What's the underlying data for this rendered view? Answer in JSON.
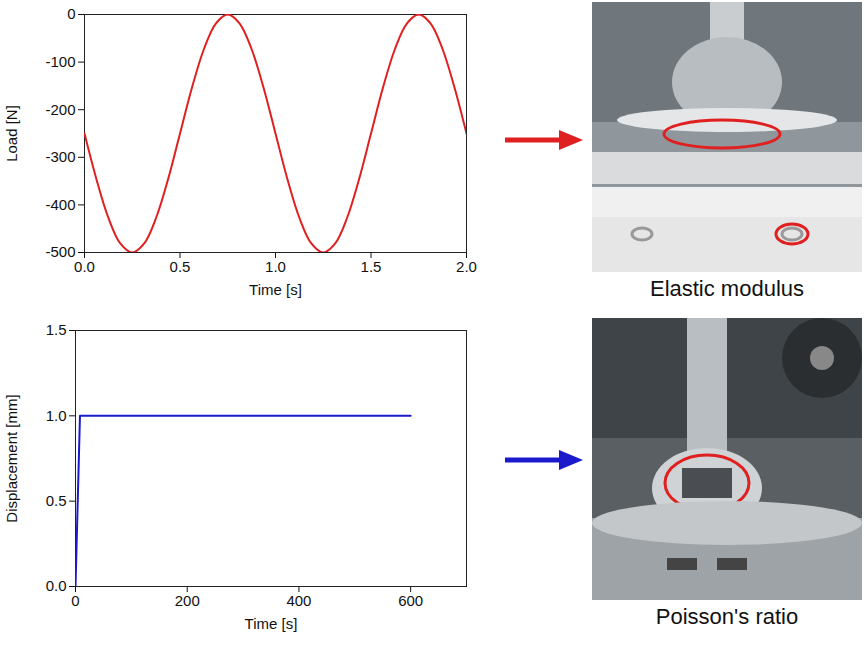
{
  "chart_data": [
    {
      "type": "line",
      "x_label": "Time [s]",
      "y_label": "Load [N]",
      "x": [
        0,
        0.0625,
        0.125,
        0.1875,
        0.25,
        0.3125,
        0.375,
        0.4375,
        0.5,
        0.5625,
        0.625,
        0.6875,
        0.75,
        0.8125,
        0.875,
        0.9375,
        1.0,
        1.0625,
        1.125,
        1.1875,
        1.25,
        1.3125,
        1.375,
        1.4375,
        1.5,
        1.5625,
        1.625,
        1.6875,
        1.75,
        1.8125,
        1.875,
        1.9375,
        2.0
      ],
      "values": [
        -250,
        -346,
        -427,
        -481,
        -500,
        -481,
        -427,
        -346,
        -250,
        -154,
        -73,
        -19,
        0,
        -19,
        -73,
        -154,
        -250,
        -346,
        -427,
        -481,
        -500,
        -481,
        -427,
        -346,
        -250,
        -154,
        -73,
        -19,
        0,
        -19,
        -73,
        -154,
        -250
      ],
      "color": "#e02020",
      "xlim": [
        0,
        2
      ],
      "xticks": [
        {
          "value": 0,
          "label": "0.0"
        },
        {
          "value": 0.5,
          "label": "0.5"
        },
        {
          "value": 1,
          "label": "1.0"
        },
        {
          "value": 1.5,
          "label": "1.5"
        },
        {
          "value": 2,
          "label": "2.0"
        }
      ],
      "ylim": [
        -500,
        0
      ],
      "yticks": [
        0,
        -100,
        -200,
        -300,
        -400,
        -500
      ]
    },
    {
      "type": "line",
      "x_label": "Time [s]",
      "y_label": "Displacement [mm]",
      "x": [
        0,
        8,
        600
      ],
      "values": [
        0,
        1,
        1
      ],
      "color": "#1a1acc",
      "xlim": [
        0,
        700
      ],
      "xticks": [
        0,
        200,
        400,
        600
      ],
      "ylim": [
        0,
        1.5
      ],
      "yticks": [
        {
          "value": 0,
          "label": "0.0"
        },
        {
          "value": 0.5,
          "label": "0.5"
        },
        {
          "value": 1,
          "label": "1.0"
        },
        {
          "value": 1.5,
          "label": "1.5"
        }
      ]
    }
  ],
  "panels": [
    {
      "caption": "Elastic modulus"
    },
    {
      "caption": "Poisson's ratio"
    }
  ]
}
